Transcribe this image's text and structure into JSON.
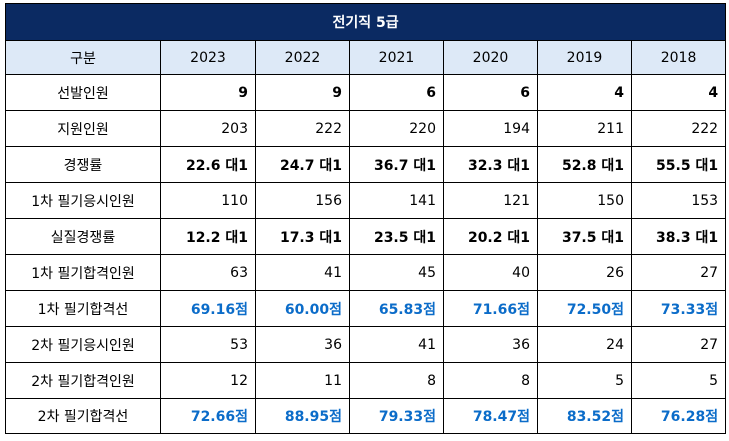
{
  "title": "전기직 5급",
  "header": {
    "label": "구분",
    "years": [
      "2023",
      "2022",
      "2021",
      "2020",
      "2019",
      "2018"
    ]
  },
  "rows": [
    {
      "label": "선발인원",
      "style": "bold",
      "values": [
        "9",
        "9",
        "6",
        "6",
        "4",
        "4"
      ]
    },
    {
      "label": "지원인원",
      "style": "normal",
      "values": [
        "203",
        "222",
        "220",
        "194",
        "211",
        "222"
      ]
    },
    {
      "label": "경쟁률",
      "style": "bold",
      "values": [
        "22.6 대1",
        "24.7 대1",
        "36.7 대1",
        "32.3 대1",
        "52.8 대1",
        "55.5 대1"
      ]
    },
    {
      "label": "1차 필기응시인원",
      "style": "normal",
      "values": [
        "110",
        "156",
        "141",
        "121",
        "150",
        "153"
      ]
    },
    {
      "label": "실질경쟁률",
      "style": "bold",
      "values": [
        "12.2 대1",
        "17.3 대1",
        "23.5 대1",
        "20.2 대1",
        "37.5 대1",
        "38.3 대1"
      ]
    },
    {
      "label": "1차 필기합격인원",
      "style": "normal",
      "values": [
        "63",
        "41",
        "45",
        "40",
        "26",
        "27"
      ]
    },
    {
      "label": "1차 필기합격선",
      "style": "blue",
      "values": [
        "69.16점",
        "60.00점",
        "65.83점",
        "71.66점",
        "72.50점",
        "73.33점"
      ]
    },
    {
      "label": "2차 필기응시인원",
      "style": "normal",
      "values": [
        "53",
        "36",
        "41",
        "36",
        "24",
        "27"
      ]
    },
    {
      "label": "2차 필기합격인원",
      "style": "normal",
      "values": [
        "12",
        "11",
        "8",
        "8",
        "5",
        "5"
      ]
    },
    {
      "label": "2차 필기합격선",
      "style": "blue",
      "values": [
        "72.66점",
        "88.95점",
        "79.33점",
        "78.47점",
        "83.52점",
        "76.28점"
      ]
    }
  ]
}
